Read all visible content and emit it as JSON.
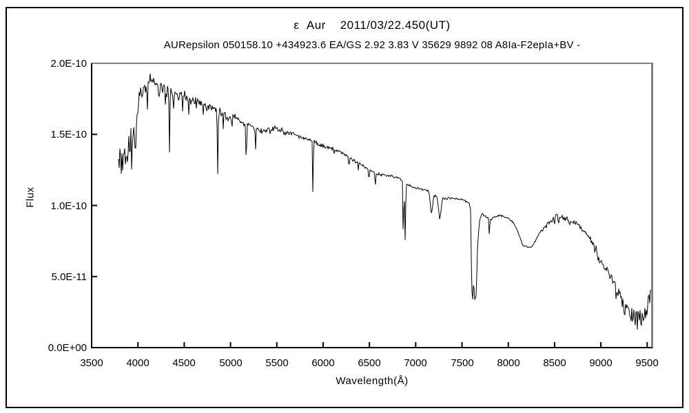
{
  "page": {
    "background_color": "#ffffff",
    "outer_border_color": "#000000",
    "frame_shadow_color": "#808080",
    "frame_line_color": "#000000",
    "text_color": "#000000"
  },
  "chart": {
    "title": "ε  Aur    2011/03/22.450(UT)",
    "subtitle": "AURepsilon 050158.10 +434923.6 EA/GS 2.92 3.83 V 35629 9892 08 A8Ia-F2epIa+BV -",
    "xlabel": "Wavelength(Å)",
    "ylabel": "Flux"
  },
  "chart_data": {
    "type": "line",
    "series_name": "epsilon-aurigae-spectrum",
    "line_color": "#000000",
    "grid": false,
    "legend": false,
    "xlim": [
      3500,
      9550
    ],
    "ylim": [
      0,
      2e-10
    ],
    "x_tick_values": [
      3500,
      4000,
      4500,
      5000,
      5500,
      6000,
      6500,
      7000,
      7500,
      8000,
      8500,
      9000,
      9500
    ],
    "x_tick_labels": [
      "3500",
      "4000",
      "4500",
      "5000",
      "5500",
      "6000",
      "6500",
      "7000",
      "7500",
      "8000",
      "8500",
      "9000",
      "9500"
    ],
    "y_tick_values_1e10": [
      2.0,
      1.5,
      1.0,
      0.5,
      0.0
    ],
    "y_tick_labels": [
      "2.0E-10",
      "1.5E-10",
      "1.0E-10",
      "5.0E-11",
      "0.0E+00"
    ],
    "wavelength_range": [
      3790,
      9540
    ],
    "noise_seed": 20110322,
    "continuum_1e10": [
      [
        3790,
        1.33
      ],
      [
        3850,
        1.32
      ],
      [
        3900,
        1.43
      ],
      [
        3945,
        1.49
      ],
      [
        3985,
        1.58
      ],
      [
        4020,
        1.8
      ],
      [
        4080,
        1.84
      ],
      [
        4130,
        1.89
      ],
      [
        4180,
        1.86
      ],
      [
        4260,
        1.81
      ],
      [
        4340,
        1.81
      ],
      [
        4430,
        1.77
      ],
      [
        4530,
        1.77
      ],
      [
        4630,
        1.72
      ],
      [
        4740,
        1.7
      ],
      [
        4850,
        1.66
      ],
      [
        4950,
        1.63
      ],
      [
        5050,
        1.61
      ],
      [
        5150,
        1.58
      ],
      [
        5250,
        1.55
      ],
      [
        5350,
        1.52
      ],
      [
        5470,
        1.54
      ],
      [
        5570,
        1.52
      ],
      [
        5700,
        1.5
      ],
      [
        5800,
        1.47
      ],
      [
        5900,
        1.45
      ],
      [
        6000,
        1.42
      ],
      [
        6100,
        1.4
      ],
      [
        6200,
        1.37
      ],
      [
        6300,
        1.33
      ],
      [
        6400,
        1.29
      ],
      [
        6500,
        1.25
      ],
      [
        6600,
        1.22
      ],
      [
        6700,
        1.21
      ],
      [
        6800,
        1.2
      ],
      [
        6900,
        1.15
      ],
      [
        7000,
        1.12
      ],
      [
        7100,
        1.11
      ],
      [
        7150,
        1.1
      ],
      [
        7200,
        1.07
      ],
      [
        7300,
        1.05
      ],
      [
        7400,
        1.05
      ],
      [
        7500,
        1.04
      ],
      [
        7580,
        1.02
      ],
      [
        7596,
        0.95
      ],
      [
        7604,
        0.4
      ],
      [
        7618,
        0.34
      ],
      [
        7626,
        0.5
      ],
      [
        7634,
        0.33
      ],
      [
        7652,
        0.36
      ],
      [
        7668,
        0.7
      ],
      [
        7690,
        0.9
      ],
      [
        7720,
        0.94
      ],
      [
        7760,
        0.92
      ],
      [
        7810,
        0.9
      ],
      [
        7860,
        0.92
      ],
      [
        7910,
        0.93
      ],
      [
        7960,
        0.92
      ],
      [
        8010,
        0.91
      ],
      [
        8080,
        0.85
      ],
      [
        8160,
        0.72
      ],
      [
        8250,
        0.7
      ],
      [
        8330,
        0.8
      ],
      [
        8420,
        0.86
      ],
      [
        8520,
        0.93
      ],
      [
        8620,
        0.91
      ],
      [
        8720,
        0.88
      ],
      [
        8820,
        0.82
      ],
      [
        8900,
        0.75
      ],
      [
        8980,
        0.63
      ],
      [
        9060,
        0.56
      ],
      [
        9140,
        0.46
      ],
      [
        9220,
        0.32
      ],
      [
        9300,
        0.27
      ],
      [
        9380,
        0.22
      ],
      [
        9440,
        0.17
      ],
      [
        9480,
        0.2
      ],
      [
        9540,
        0.42
      ]
    ],
    "absorption_lines": [
      [
        3835,
        0.12,
        7
      ],
      [
        3870,
        0.1,
        6
      ],
      [
        3890,
        0.15,
        7
      ],
      [
        3933,
        0.24,
        9
      ],
      [
        3970,
        0.2,
        9
      ],
      [
        4045,
        0.1,
        6
      ],
      [
        4101,
        0.22,
        9
      ],
      [
        4226,
        0.12,
        6
      ],
      [
        4300,
        0.13,
        7
      ],
      [
        4340,
        0.46,
        9
      ],
      [
        4383,
        0.16,
        7
      ],
      [
        4481,
        0.14,
        7
      ],
      [
        4550,
        0.12,
        6
      ],
      [
        4630,
        0.09,
        6
      ],
      [
        4703,
        0.08,
        5
      ],
      [
        4861,
        0.48,
        9
      ],
      [
        4920,
        0.1,
        6
      ],
      [
        5015,
        0.08,
        6
      ],
      [
        5170,
        0.27,
        11
      ],
      [
        5270,
        0.14,
        9
      ],
      [
        5430,
        0.06,
        6
      ],
      [
        5890,
        0.43,
        8
      ],
      [
        6120,
        0.05,
        6
      ],
      [
        6280,
        0.07,
        9
      ],
      [
        6380,
        0.05,
        6
      ],
      [
        6495,
        0.09,
        8
      ],
      [
        6563,
        0.13,
        7
      ],
      [
        6866,
        0.44,
        9
      ],
      [
        6886,
        0.4,
        11
      ],
      [
        7170,
        0.15,
        28
      ],
      [
        7260,
        0.16,
        30
      ],
      [
        7795,
        0.12,
        9
      ],
      [
        8498,
        0.07,
        6
      ],
      [
        8542,
        0.08,
        6
      ],
      [
        8662,
        0.07,
        6
      ]
    ],
    "noise_bands": [
      [
        3790,
        3990,
        0.11
      ],
      [
        3990,
        4450,
        0.055
      ],
      [
        4450,
        5050,
        0.045
      ],
      [
        5050,
        5600,
        0.028
      ],
      [
        5600,
        6250,
        0.016
      ],
      [
        6250,
        6950,
        0.012
      ],
      [
        6950,
        7596,
        0.01
      ],
      [
        7596,
        7700,
        0.025
      ],
      [
        7700,
        8350,
        0.01
      ],
      [
        8350,
        8900,
        0.022
      ],
      [
        8900,
        9150,
        0.045
      ],
      [
        9150,
        9540,
        0.11
      ]
    ]
  }
}
